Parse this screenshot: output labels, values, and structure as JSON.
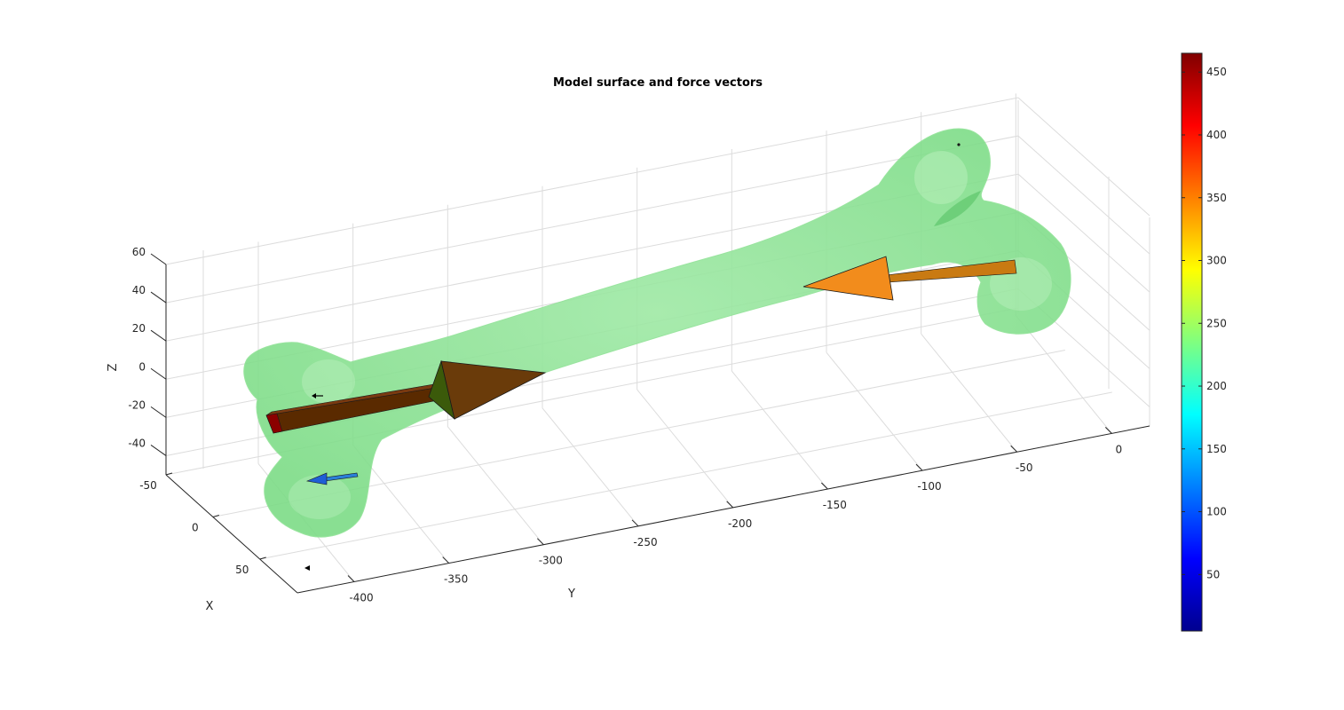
{
  "chart_data": {
    "type": "3d-surface-with-vectors",
    "title": "Model surface and force vectors",
    "xlabel": "X",
    "ylabel": "Y",
    "zlabel": "Z",
    "x_ticks": [
      "-50",
      "0",
      "50"
    ],
    "y_ticks": [
      "-400",
      "-350",
      "-300",
      "-250",
      "-200",
      "-150",
      "-100",
      "-50",
      "0"
    ],
    "z_ticks": [
      "-40",
      "-20",
      "0",
      "20",
      "40",
      "60"
    ],
    "xlim": [
      -50,
      50
    ],
    "ylim": [
      -430,
      20
    ],
    "zlim": [
      -50,
      60
    ],
    "grid": true,
    "surface_color": "#7fe08a",
    "colorbar": {
      "colormap": "jet",
      "range": [
        5,
        465
      ],
      "ticks": [
        "50",
        "100",
        "150",
        "200",
        "250",
        "300",
        "350",
        "400",
        "450"
      ]
    },
    "vectors": [
      {
        "name": "red",
        "magnitude": 460,
        "color": "#8b0000"
      },
      {
        "name": "orange",
        "magnitude": 350,
        "color": "#f28c1c"
      },
      {
        "name": "blue",
        "magnitude": 120,
        "color": "#1f5fd6"
      }
    ]
  }
}
